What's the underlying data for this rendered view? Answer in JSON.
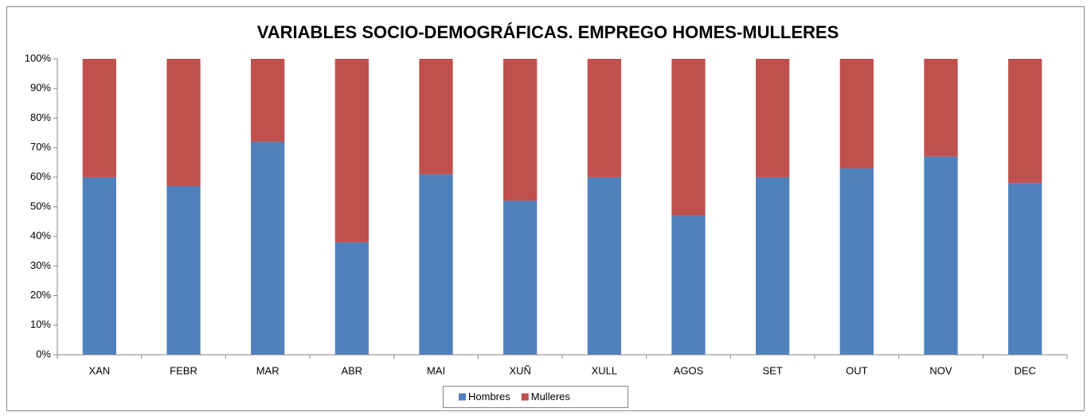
{
  "chart_data": {
    "type": "stacked_bar_percent",
    "title": "VARIABLES SOCIO-DEMOGRÁFICAS.  EMPREGO HOMES-MULLERES",
    "categories": [
      "XAN",
      "FEBR",
      "MAR",
      "ABR",
      "MAI",
      "XUÑ",
      "XULL",
      "AGOS",
      "SET",
      "OUT",
      "NOV",
      "DEC"
    ],
    "series": [
      {
        "name": "Hombres",
        "color": "#4f81bd",
        "values": [
          60,
          57,
          72,
          38,
          61,
          52,
          60,
          47,
          60,
          63,
          67,
          58
        ]
      },
      {
        "name": "Mulleres",
        "color": "#c0504d",
        "values": [
          40,
          43,
          28,
          62,
          39,
          48,
          40,
          53,
          40,
          37,
          33,
          42
        ]
      }
    ],
    "ylim": [
      0,
      100
    ],
    "yticks": [
      {
        "value": 0,
        "label": "0%"
      },
      {
        "value": 10,
        "label": "10%"
      },
      {
        "value": 20,
        "label": "20%"
      },
      {
        "value": 30,
        "label": "30%"
      },
      {
        "value": 40,
        "label": "40%"
      },
      {
        "value": 50,
        "label": "50%"
      },
      {
        "value": 60,
        "label": "60%"
      },
      {
        "value": 70,
        "label": "70%"
      },
      {
        "value": 80,
        "label": "80%"
      },
      {
        "value": 90,
        "label": "90%"
      },
      {
        "value": 100,
        "label": "100%"
      }
    ],
    "legend": "bottom"
  }
}
